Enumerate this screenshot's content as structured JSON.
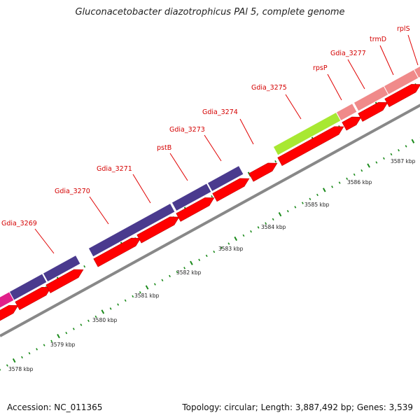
{
  "title": "Gluconacetobacter diazotrophicus PAl 5, complete genome",
  "genes": [
    {
      "label": "Gdia_3269",
      "color": "#4a3a8e"
    },
    {
      "label": "Gdia_3270",
      "color": "#4a3a8e"
    },
    {
      "label": "Gdia_3271",
      "color": "#4a3a8e"
    },
    {
      "label": "pstB",
      "color": "#4a3a8e"
    },
    {
      "label": "Gdia_3273",
      "color": "#4a3a8e"
    },
    {
      "label": "Gdia_3274",
      "color": "#4a3a8e"
    },
    {
      "label": "Gdia_3275",
      "color": "#a8e832"
    },
    {
      "label": "rpsP",
      "color": "#f08a8a"
    },
    {
      "label": "Gdia_3277",
      "color": "#f08a8a"
    },
    {
      "label": "trmD",
      "color": "#f08a8a"
    },
    {
      "label": "rplS",
      "color": "#f08a8a"
    }
  ],
  "left_edge_gene_color": "#e0208a",
  "cds_color": "#ff0000",
  "backbone_color": "#888888",
  "tick_color": "#1a8a1a",
  "scale_labels": [
    "3578 kbp",
    "3579 kbp",
    "3580 kbp",
    "3581 kbp",
    "3582 kbp",
    "3583 kbp",
    "3584 kbp",
    "3585 kbp",
    "3586 kbp",
    "3587 kbp"
  ],
  "footer": {
    "accession": "Accession: NC_011365",
    "summary": "Topology: circular; Length: 3,887,492 bp; Genes: 3,539"
  }
}
